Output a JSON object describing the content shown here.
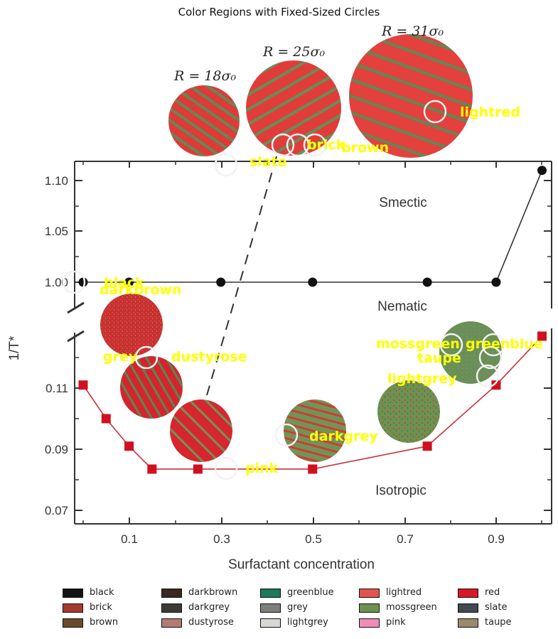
{
  "title": "Color Regions with Fixed-Sized Circles",
  "chart_data": {
    "type": "scatter",
    "title": "Color Regions with Fixed-Sized Circles",
    "xlabel": "Surfactant concentration",
    "ylabel": "1/T*",
    "x_ticks": [
      "0.1",
      "0.3",
      "0.5",
      "0.7",
      "0.9"
    ],
    "upper_panel": {
      "y_ticks": [
        "1.10",
        "1.05",
        "1.00"
      ],
      "ylim": [
        0.995,
        1.12
      ],
      "series": [
        {
          "x": [
            0,
            0.1,
            0.3,
            0.5,
            0.75,
            0.9,
            1.0
          ],
          "y": [
            1.0,
            1.0,
            1.0,
            1.0,
            1.0,
            1.0,
            1.11
          ],
          "color": "#111111",
          "marker": "circle"
        }
      ]
    },
    "lower_panel": {
      "y_ticks": [
        "0.11",
        "0.09",
        "0.07"
      ],
      "ylim": [
        0.065,
        0.13
      ],
      "series": [
        {
          "x": [
            0,
            0.05,
            0.1,
            0.15,
            0.25,
            0.5,
            0.75,
            0.9,
            1.0
          ],
          "y": [
            0.111,
            0.1,
            0.091,
            0.0835,
            0.0835,
            0.0835,
            0.091,
            0.111,
            0.127
          ],
          "color": "#d0101e",
          "marker": "square"
        }
      ]
    },
    "region_labels": [
      "Smectic",
      "Nematic",
      "Isotropic"
    ],
    "radius_labels": [
      "R = 18σ₀",
      "R = 25σ₀",
      "R = 31σ₀"
    ],
    "overlay_labels": [
      "lightred",
      "brick",
      "brown",
      "slate",
      "black",
      "darkbrown",
      "grey",
      "dustyrose",
      "mossgreen",
      "greenblue",
      "taupe",
      "lightgrey",
      "darkgrey",
      "pink"
    ],
    "legend": [
      {
        "name": "black",
        "color": "#141414"
      },
      {
        "name": "brick",
        "color": "#a63a30"
      },
      {
        "name": "brown",
        "color": "#6b4a2c"
      },
      {
        "name": "darkbrown",
        "color": "#3a2820"
      },
      {
        "name": "darkgrey",
        "color": "#3a3a36"
      },
      {
        "name": "dustyrose",
        "color": "#b47a74"
      },
      {
        "name": "greenblue",
        "color": "#1a7a5a"
      },
      {
        "name": "grey",
        "color": "#7e7e7a"
      },
      {
        "name": "lightgrey",
        "color": "#d8d8d2"
      },
      {
        "name": "lightred",
        "color": "#e4524e"
      },
      {
        "name": "mossgreen",
        "color": "#6e9150"
      },
      {
        "name": "pink",
        "color": "#f08cb8"
      },
      {
        "name": "red",
        "color": "#d81828"
      },
      {
        "name": "slate",
        "color": "#404a52"
      },
      {
        "name": "taupe",
        "color": "#9a8a6e"
      }
    ]
  }
}
